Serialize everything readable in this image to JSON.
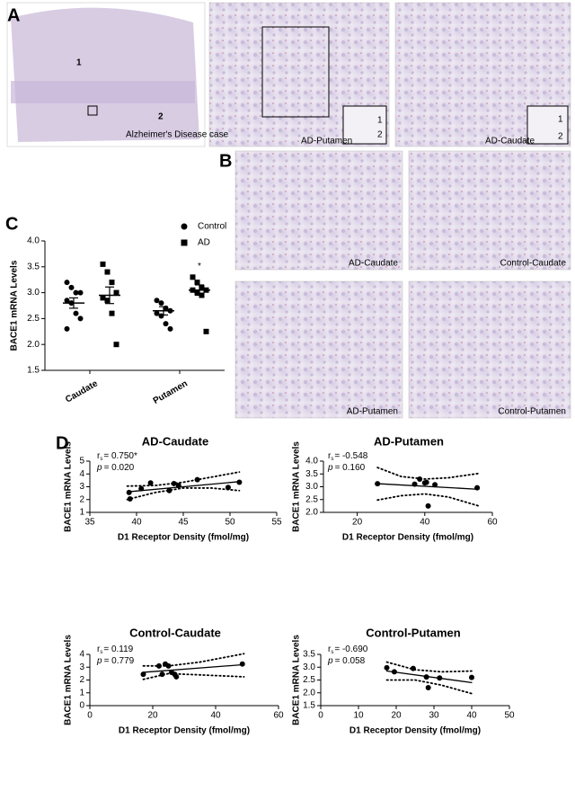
{
  "panel_labels": [
    "A",
    "B",
    "C",
    "D"
  ],
  "images": [
    {
      "labels": [
        "1",
        "2",
        "Alzheimer's Disease case"
      ]
    },
    {
      "labels": [
        "AD-Putamen",
        "1",
        "2"
      ]
    },
    {
      "labels": [
        "AD-Caudate",
        "1",
        "2"
      ]
    },
    {
      "labels": [
        "AD-Caudate"
      ]
    },
    {
      "labels": [
        "Control-Caudate"
      ]
    },
    {
      "labels": [
        "AD-Putamen"
      ]
    },
    {
      "labels": [
        "Control-Putamen"
      ]
    }
  ],
  "chart_data": [
    {
      "type": "dot",
      "y_label": "BACE1 mRNA Levels",
      "categories": [
        "Caudate",
        "Putamen"
      ],
      "ylim": [
        1.5,
        4.0
      ],
      "yticks": [
        1.5,
        {
          "value": 2,
          "label": "2.0"
        },
        2.5,
        {
          "value": 3,
          "label": "3.0"
        },
        3.5,
        {
          "value": 4,
          "label": "4.0"
        }
      ],
      "annotation": "*",
      "series": [
        {
          "name": "Control",
          "marker": "circle",
          "color": "#000000",
          "values": [
            [
              3.2,
              3.1,
              3.0,
              3.0,
              2.85,
              2.8,
              2.6,
              2.5,
              2.3
            ],
            [
              2.85,
              2.8,
              2.7,
              2.65,
              2.6,
              2.55,
              2.4,
              2.3
            ]
          ],
          "means": [
            2.8,
            2.65
          ],
          "sems": [
            0.1,
            0.08
          ]
        },
        {
          "name": "AD",
          "marker": "square",
          "color": "#000000",
          "values": [
            [
              3.55,
              3.4,
              3.2,
              3.0,
              2.9,
              2.85,
              2.6,
              2.0
            ],
            [
              3.3,
              3.2,
              3.1,
              3.05,
              3.05,
              3.0,
              2.95,
              2.25
            ]
          ],
          "means": [
            2.95,
            3.05
          ],
          "sems": [
            0.16,
            0.1
          ]
        }
      ]
    },
    {
      "type": "scatter",
      "title": "AD-Caudate",
      "stat_r": "r",
      "stat_r_sub": "s",
      "stat_r_value": "= 0.750*",
      "stat_p": "p",
      "stat_p_value": "= 0.020",
      "x_label": "D1 Receptor Density (fmol/mg)",
      "y_label": "BACE1 mRNA Levels",
      "color": "#000000",
      "xlim": [
        35,
        55
      ],
      "xticks": [
        35,
        40,
        45,
        50,
        55
      ],
      "ylim": [
        1,
        5
      ],
      "yticks": [
        1,
        2,
        3,
        4,
        5
      ],
      "x": [
        39.2,
        39.3,
        40.5,
        41.5,
        43.5,
        44,
        44.5,
        46.5,
        49.8,
        51
      ],
      "y": [
        2.55,
        2.05,
        2.85,
        3.3,
        2.7,
        3.25,
        3.1,
        3.55,
        2.95,
        3.35
      ],
      "fit": {
        "x": [
          39,
          51
        ],
        "y": [
          2.6,
          3.4
        ]
      },
      "ci_upper": {
        "x": [
          39,
          42,
          45,
          48,
          51
        ],
        "y": [
          3.05,
          3.1,
          3.35,
          3.75,
          4.15
        ]
      },
      "ci_lower": {
        "x": [
          39,
          42,
          45,
          48,
          51
        ],
        "y": [
          2.0,
          2.55,
          2.9,
          2.9,
          2.7
        ]
      }
    },
    {
      "type": "scatter",
      "title": "AD-Putamen",
      "stat_r": "r",
      "stat_r_sub": "s",
      "stat_r_value": "= -0.548",
      "stat_p": "p",
      "stat_p_value": "= 0.160",
      "x_label": "D1 Receptor Density (fmol/mg)",
      "y_label": "BACE1 mRNA Levels",
      "color": "#000000",
      "xlim": [
        10,
        60
      ],
      "xticks": [
        20,
        40,
        60
      ],
      "ylim": [
        2.0,
        4.0
      ],
      "yticks": [
        {
          "value": 2,
          "label": "2.0"
        },
        2.5,
        {
          "value": 3,
          "label": "3.0"
        },
        3.5,
        {
          "value": 4,
          "label": "4.0"
        }
      ],
      "x": [
        26,
        37,
        38.5,
        40,
        40.5,
        41,
        43,
        55.5
      ],
      "y": [
        3.12,
        3.1,
        3.3,
        3.15,
        3.17,
        2.25,
        3.08,
        2.96
      ],
      "fit": {
        "x": [
          26,
          56
        ],
        "y": [
          3.12,
          2.9
        ]
      },
      "ci_upper": {
        "x": [
          26,
          33,
          40,
          47,
          56
        ],
        "y": [
          3.75,
          3.4,
          3.3,
          3.35,
          3.52
        ]
      },
      "ci_lower": {
        "x": [
          26,
          33,
          40,
          47,
          56
        ],
        "y": [
          2.48,
          2.65,
          2.72,
          2.6,
          2.25
        ]
      }
    },
    {
      "type": "scatter",
      "title": "Control-Caudate",
      "stat_r": "r",
      "stat_r_sub": "s",
      "stat_r_value": "= 0.119",
      "stat_p": "p",
      "stat_p_value": "= 0.779",
      "x_label": "D1 Receptor Density (fmol/mg)",
      "y_label": "BACE1 mRNA Levels",
      "color": "#000000",
      "xlim": [
        0,
        60
      ],
      "xticks": [
        0,
        20,
        40,
        60
      ],
      "ylim": [
        0,
        4
      ],
      "yticks": [
        0,
        1,
        2,
        3,
        4
      ],
      "x": [
        17,
        22,
        23,
        24,
        25,
        26,
        27,
        27.5,
        48.5
      ],
      "y": [
        2.45,
        3.1,
        2.45,
        3.25,
        3.1,
        2.6,
        2.45,
        2.25,
        3.25
      ],
      "fit": {
        "x": [
          17,
          49
        ],
        "y": [
          2.6,
          3.2
        ]
      },
      "ci_upper": {
        "x": [
          17,
          25,
          35,
          49
        ],
        "y": [
          3.1,
          3.1,
          3.4,
          4.05
        ]
      },
      "ci_lower": {
        "x": [
          17,
          25,
          35,
          49
        ],
        "y": [
          2.05,
          2.5,
          2.4,
          2.25
        ]
      }
    },
    {
      "type": "scatter",
      "title": "Control-Putamen",
      "stat_r": "r",
      "stat_r_sub": "s",
      "stat_r_value": "= -0.690",
      "stat_p": "p",
      "stat_p_value": "= 0.058",
      "x_label": "D1 Receptor Density (fmol/mg)",
      "y_label": "BACE1 mRNA Levels",
      "color": "#000000",
      "xlim": [
        0,
        50
      ],
      "xticks": [
        0,
        10,
        20,
        30,
        40,
        50
      ],
      "ylim": [
        1.5,
        3.5
      ],
      "yticks": [
        1.5,
        {
          "value": 2,
          "label": "2.0"
        },
        2.5,
        {
          "value": 3,
          "label": "3.0"
        },
        3.5
      ],
      "x": [
        17.5,
        19.5,
        24.5,
        28,
        28.5,
        31.5,
        40
      ],
      "y": [
        2.98,
        2.82,
        2.95,
        2.62,
        2.2,
        2.58,
        2.6
      ],
      "fit": {
        "x": [
          17.5,
          40
        ],
        "y": [
          2.85,
          2.4
        ]
      },
      "ci_upper": {
        "x": [
          17.5,
          25,
          32,
          40
        ],
        "y": [
          3.2,
          2.9,
          2.82,
          2.85
        ]
      },
      "ci_lower": {
        "x": [
          17.5,
          25,
          32,
          40
        ],
        "y": [
          2.5,
          2.5,
          2.3,
          1.97
        ]
      }
    }
  ]
}
